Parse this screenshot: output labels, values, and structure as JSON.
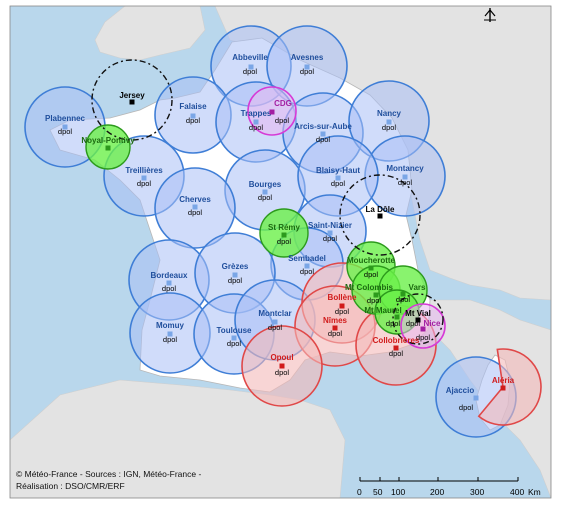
{
  "colors": {
    "sea": "#b9d7ec",
    "land_france": "#ffffff",
    "land_neighbors": "#e3e3e3",
    "blue_fill": "#a9c0f5",
    "blue_stroke": "#3f7ed6",
    "blue_label": "#1f4e9c",
    "green_fill": "#6cf04a",
    "green_stroke": "#2c9a1c",
    "green_label": "#1c6a10",
    "red_fill": "#f4b9b9",
    "red_stroke": "#e04848",
    "red_label": "#d11b1b",
    "magenta_stroke": "#d63ad6",
    "magenta_label": "#a21ea2"
  },
  "radars": [
    {
      "name": "Abbeville",
      "sub": "dpol",
      "type": "blue"
    },
    {
      "name": "Avesnes",
      "sub": "dpol",
      "type": "blue"
    },
    {
      "name": "Jersey",
      "sub": "",
      "type": "foreign"
    },
    {
      "name": "Falaise",
      "sub": "dpol",
      "type": "blue"
    },
    {
      "name": "Plabennec",
      "sub": "dpol",
      "type": "blue"
    },
    {
      "name": "Noyal-Pontivy",
      "sub": "",
      "type": "green"
    },
    {
      "name": "Trappes",
      "sub": "dpol",
      "type": "blue"
    },
    {
      "name": "CDG",
      "sub": "dpol",
      "type": "magenta"
    },
    {
      "name": "Arcis-sur-Aube",
      "sub": "dpol",
      "type": "blue"
    },
    {
      "name": "Nancy",
      "sub": "dpol",
      "type": "blue"
    },
    {
      "name": "Montancy",
      "sub": "dpol",
      "type": "blue"
    },
    {
      "name": "Treillières",
      "sub": "dpol",
      "type": "blue"
    },
    {
      "name": "Bourges",
      "sub": "dpol",
      "type": "blue"
    },
    {
      "name": "Blaisy-Haut",
      "sub": "dpol",
      "type": "blue"
    },
    {
      "name": "La Dôle",
      "sub": "",
      "type": "foreign"
    },
    {
      "name": "Cherves",
      "sub": "dpol",
      "type": "blue"
    },
    {
      "name": "St Rémy",
      "sub": "dpol",
      "type": "green"
    },
    {
      "name": "Saint-Nizier",
      "sub": "dpol",
      "type": "blue"
    },
    {
      "name": "Sembadel",
      "sub": "dpol",
      "type": "blue"
    },
    {
      "name": "Moucherotte",
      "sub": "dpol",
      "type": "green"
    },
    {
      "name": "Bordeaux",
      "sub": "dpol",
      "type": "blue"
    },
    {
      "name": "Grèzes",
      "sub": "dpol",
      "type": "blue"
    },
    {
      "name": "Mt Colombis",
      "sub": "dpol",
      "type": "green"
    },
    {
      "name": "Vars",
      "sub": "dpol",
      "type": "green"
    },
    {
      "name": "Bollène",
      "sub": "dpol",
      "type": "red"
    },
    {
      "name": "Mt Maurel",
      "sub": "dpol",
      "type": "green"
    },
    {
      "name": "Mt Vial",
      "sub": "dpol",
      "type": "foreign"
    },
    {
      "name": "Nice",
      "sub": "dpol",
      "type": "magenta"
    },
    {
      "name": "Momuy",
      "sub": "dpol",
      "type": "blue"
    },
    {
      "name": "Toulouse",
      "sub": "dpol",
      "type": "blue"
    },
    {
      "name": "Montclar",
      "sub": "dpol",
      "type": "blue"
    },
    {
      "name": "Nîmes",
      "sub": "dpol",
      "type": "red"
    },
    {
      "name": "Collobrières",
      "sub": "dpol",
      "type": "red"
    },
    {
      "name": "Opoul",
      "sub": "dpol",
      "type": "red"
    },
    {
      "name": "Ajaccio",
      "sub": "dpol",
      "type": "blue"
    },
    {
      "name": "Aléria",
      "sub": "",
      "type": "red"
    }
  ],
  "credits": {
    "line1": "© Météo-France - Sources : IGN, Météo-France -",
    "line2": "Réalisation : DSO/CMR/ERF"
  },
  "scale_bar": {
    "ticks": [
      "0",
      "50",
      "100",
      "200",
      "300",
      "400"
    ],
    "unit": "Km"
  },
  "north_arrow_icon": "north-arrow-icon"
}
